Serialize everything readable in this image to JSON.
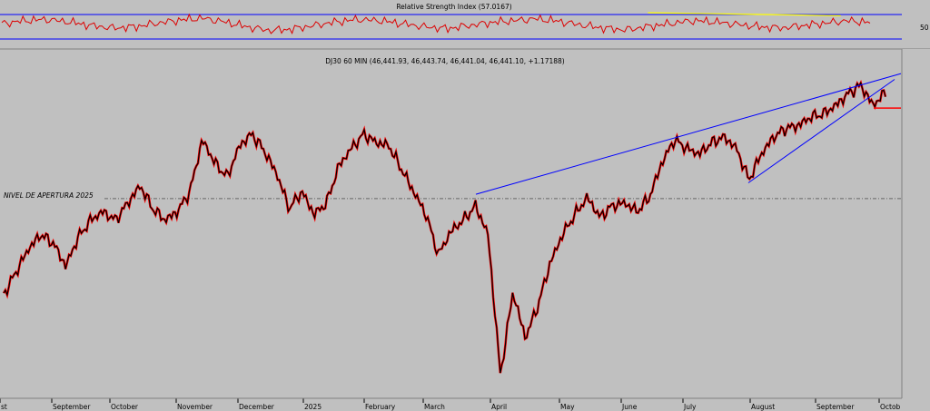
{
  "chart_data": [
    {
      "type": "line",
      "panel": "indicator",
      "title": "Relative Strength Index (57.0167)",
      "y_tick_labels": [
        "50"
      ],
      "series": [
        {
          "name": "",
          "color": "#dd0000",
          "values": [
            55,
            60,
            62,
            58,
            52,
            48,
            50,
            56,
            61,
            64,
            58,
            50,
            44,
            46,
            52,
            58,
            62,
            60,
            55,
            50,
            47,
            52,
            57,
            60,
            63,
            59,
            53,
            48,
            45,
            50,
            55,
            60,
            58,
            54,
            50,
            48,
            52,
            56,
            60,
            57
          ]
        }
      ],
      "reference_lines": [
        70,
        30
      ],
      "annotations": [
        {
          "type": "trendline",
          "color": "#ffff00",
          "from": [
            0.72,
            73
          ],
          "to": [
            0.935,
            68
          ]
        }
      ]
    },
    {
      "type": "line",
      "panel": "price",
      "title": "DJ30 60 MIN (46,441.93, 46,443.74, 46,441.04, 46,441.10, +1.17188)",
      "ylim": [
        35800,
        47200
      ],
      "y_ticks": [
        36000,
        36500,
        37000,
        37500,
        38000,
        38500,
        39000,
        39500,
        40000,
        40500,
        41000,
        41500,
        42000,
        42500,
        43000,
        43500,
        44000,
        44500,
        45000,
        45500,
        46000,
        46500,
        47000
      ],
      "x_tick_labels": [
        "st",
        "September",
        "October",
        "November",
        "December",
        "2025",
        "February",
        "March",
        "April",
        "May",
        "June",
        "July",
        "August",
        "September",
        "Octob"
      ],
      "reference_level": {
        "label": "NIVEL DE APERTURA 2025",
        "value": 42750
      },
      "support_level": {
        "value": 45900,
        "color": "#ff0000"
      },
      "trendlines": [
        {
          "color": "#0000ff",
          "from": [
            "March",
            42900
          ],
          "to": [
            "Octob",
            47100
          ]
        },
        {
          "color": "#0000ff",
          "from": [
            "August",
            43300
          ],
          "to": [
            "Octob",
            46900
          ]
        }
      ],
      "series": [
        {
          "name": "",
          "values": [
            39400,
            40200,
            41000,
            41500,
            41200,
            40400,
            41400,
            42000,
            42300,
            42000,
            42600,
            43200,
            42400,
            42000,
            42300,
            43000,
            44800,
            44000,
            43500,
            44600,
            45000,
            44400,
            43600,
            42400,
            43000,
            42200,
            42600,
            43900,
            44500,
            45000,
            44700,
            44600,
            43800,
            43000,
            42200,
            40800,
            41600,
            42000,
            42500,
            41500,
            36600,
            39500,
            37900,
            39000,
            40500,
            41500,
            42200,
            42800,
            42100,
            42500,
            42600,
            42300,
            42800,
            44000,
            44800,
            44500,
            44300,
            44700,
            44900,
            44500,
            43400,
            44300,
            44900,
            45200,
            45300,
            45600,
            45700,
            46000,
            46400,
            46700,
            46000,
            46450
          ]
        }
      ]
    }
  ]
}
